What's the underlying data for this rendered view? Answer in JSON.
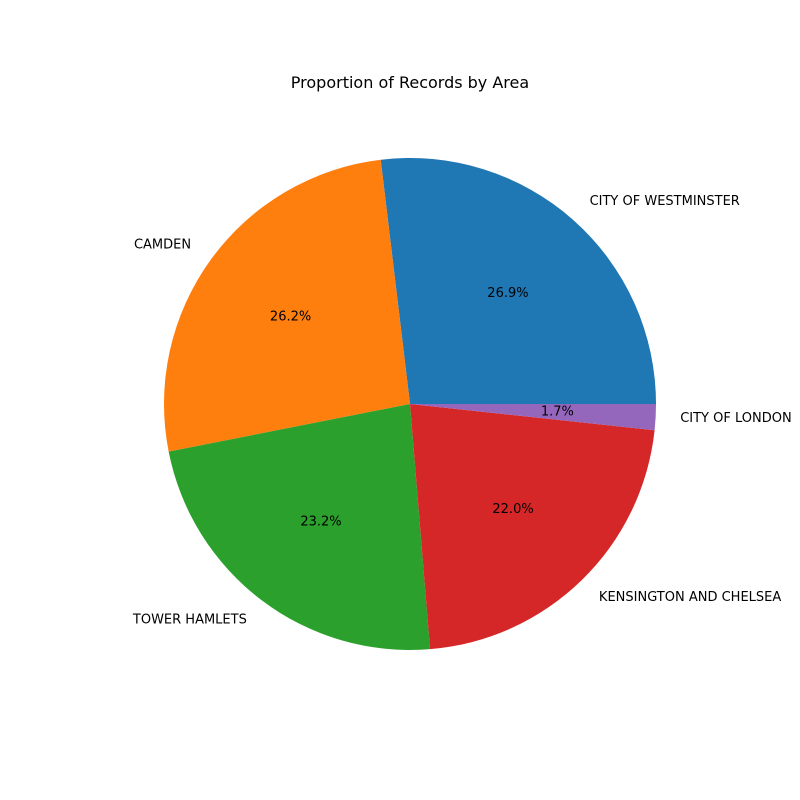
{
  "chart_data": {
    "type": "pie",
    "title": "Proportion of Records by Area",
    "start_angle_deg": 0,
    "direction": "counterclockwise",
    "slices": [
      {
        "label": "CITY OF WESTMINSTER",
        "value": 26.9,
        "pct_label": "26.9%",
        "color": "#1f77b4"
      },
      {
        "label": "CAMDEN",
        "value": 26.2,
        "pct_label": "26.2%",
        "color": "#ff7f0e"
      },
      {
        "label": "TOWER HAMLETS",
        "value": 23.2,
        "pct_label": "23.2%",
        "color": "#2ca02c"
      },
      {
        "label": "KENSINGTON AND CHELSEA",
        "value": 22.0,
        "pct_label": "22.0%",
        "color": "#d62728"
      },
      {
        "label": "CITY OF LONDON",
        "value": 1.7,
        "pct_label": "1.7%",
        "color": "#9467bd"
      }
    ]
  }
}
